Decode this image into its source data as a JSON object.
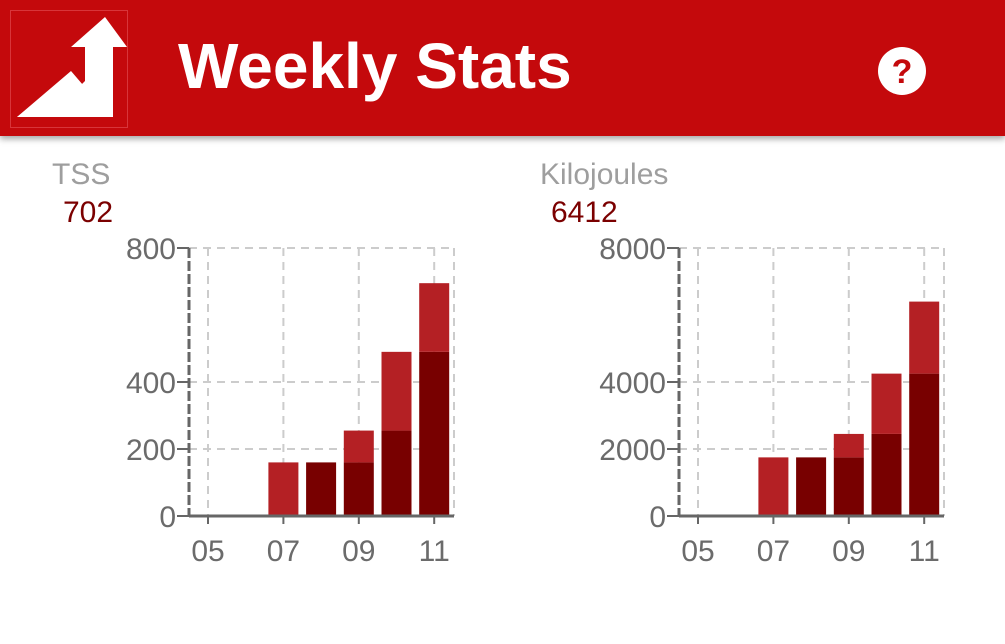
{
  "header": {
    "title": "Weekly Stats",
    "background_color": "#c4090c",
    "logo_icon": "trend-up-arrow-icon",
    "help_icon": "question-mark-icon"
  },
  "colors": {
    "bar_dark": "#780000",
    "bar_light": "#b42024",
    "grid": "#cccccc",
    "axis": "#666666",
    "label": "#9e9e9e",
    "value": "#7b0000"
  },
  "panels": [
    {
      "label": "TSS",
      "value": "702"
    },
    {
      "label": "Kilojoules",
      "value": "6412"
    }
  ],
  "chart_data": [
    {
      "type": "bar",
      "stacked": true,
      "x": [
        5,
        6,
        7,
        8,
        9,
        10,
        11
      ],
      "xticks": [
        "05",
        "07",
        "09",
        "11"
      ],
      "yticks": [
        "0",
        "200",
        "400",
        "800"
      ],
      "ylim": [
        0,
        800
      ],
      "grid": true,
      "series": [
        {
          "values": [
            0,
            0,
            0,
            160,
            160,
            255,
            490
          ]
        },
        {
          "values": [
            0,
            0,
            160,
            0,
            95,
            235,
            205
          ]
        }
      ]
    },
    {
      "type": "bar",
      "stacked": true,
      "x": [
        5,
        6,
        7,
        8,
        9,
        10,
        11
      ],
      "xticks": [
        "05",
        "07",
        "09",
        "11"
      ],
      "yticks": [
        "0",
        "2000",
        "4000",
        "8000"
      ],
      "ylim": [
        0,
        8000
      ],
      "grid": true,
      "series": [
        {
          "values": [
            0,
            0,
            0,
            1750,
            1750,
            2450,
            4250
          ]
        },
        {
          "values": [
            0,
            0,
            1750,
            0,
            700,
            1800,
            2150
          ]
        }
      ]
    }
  ]
}
